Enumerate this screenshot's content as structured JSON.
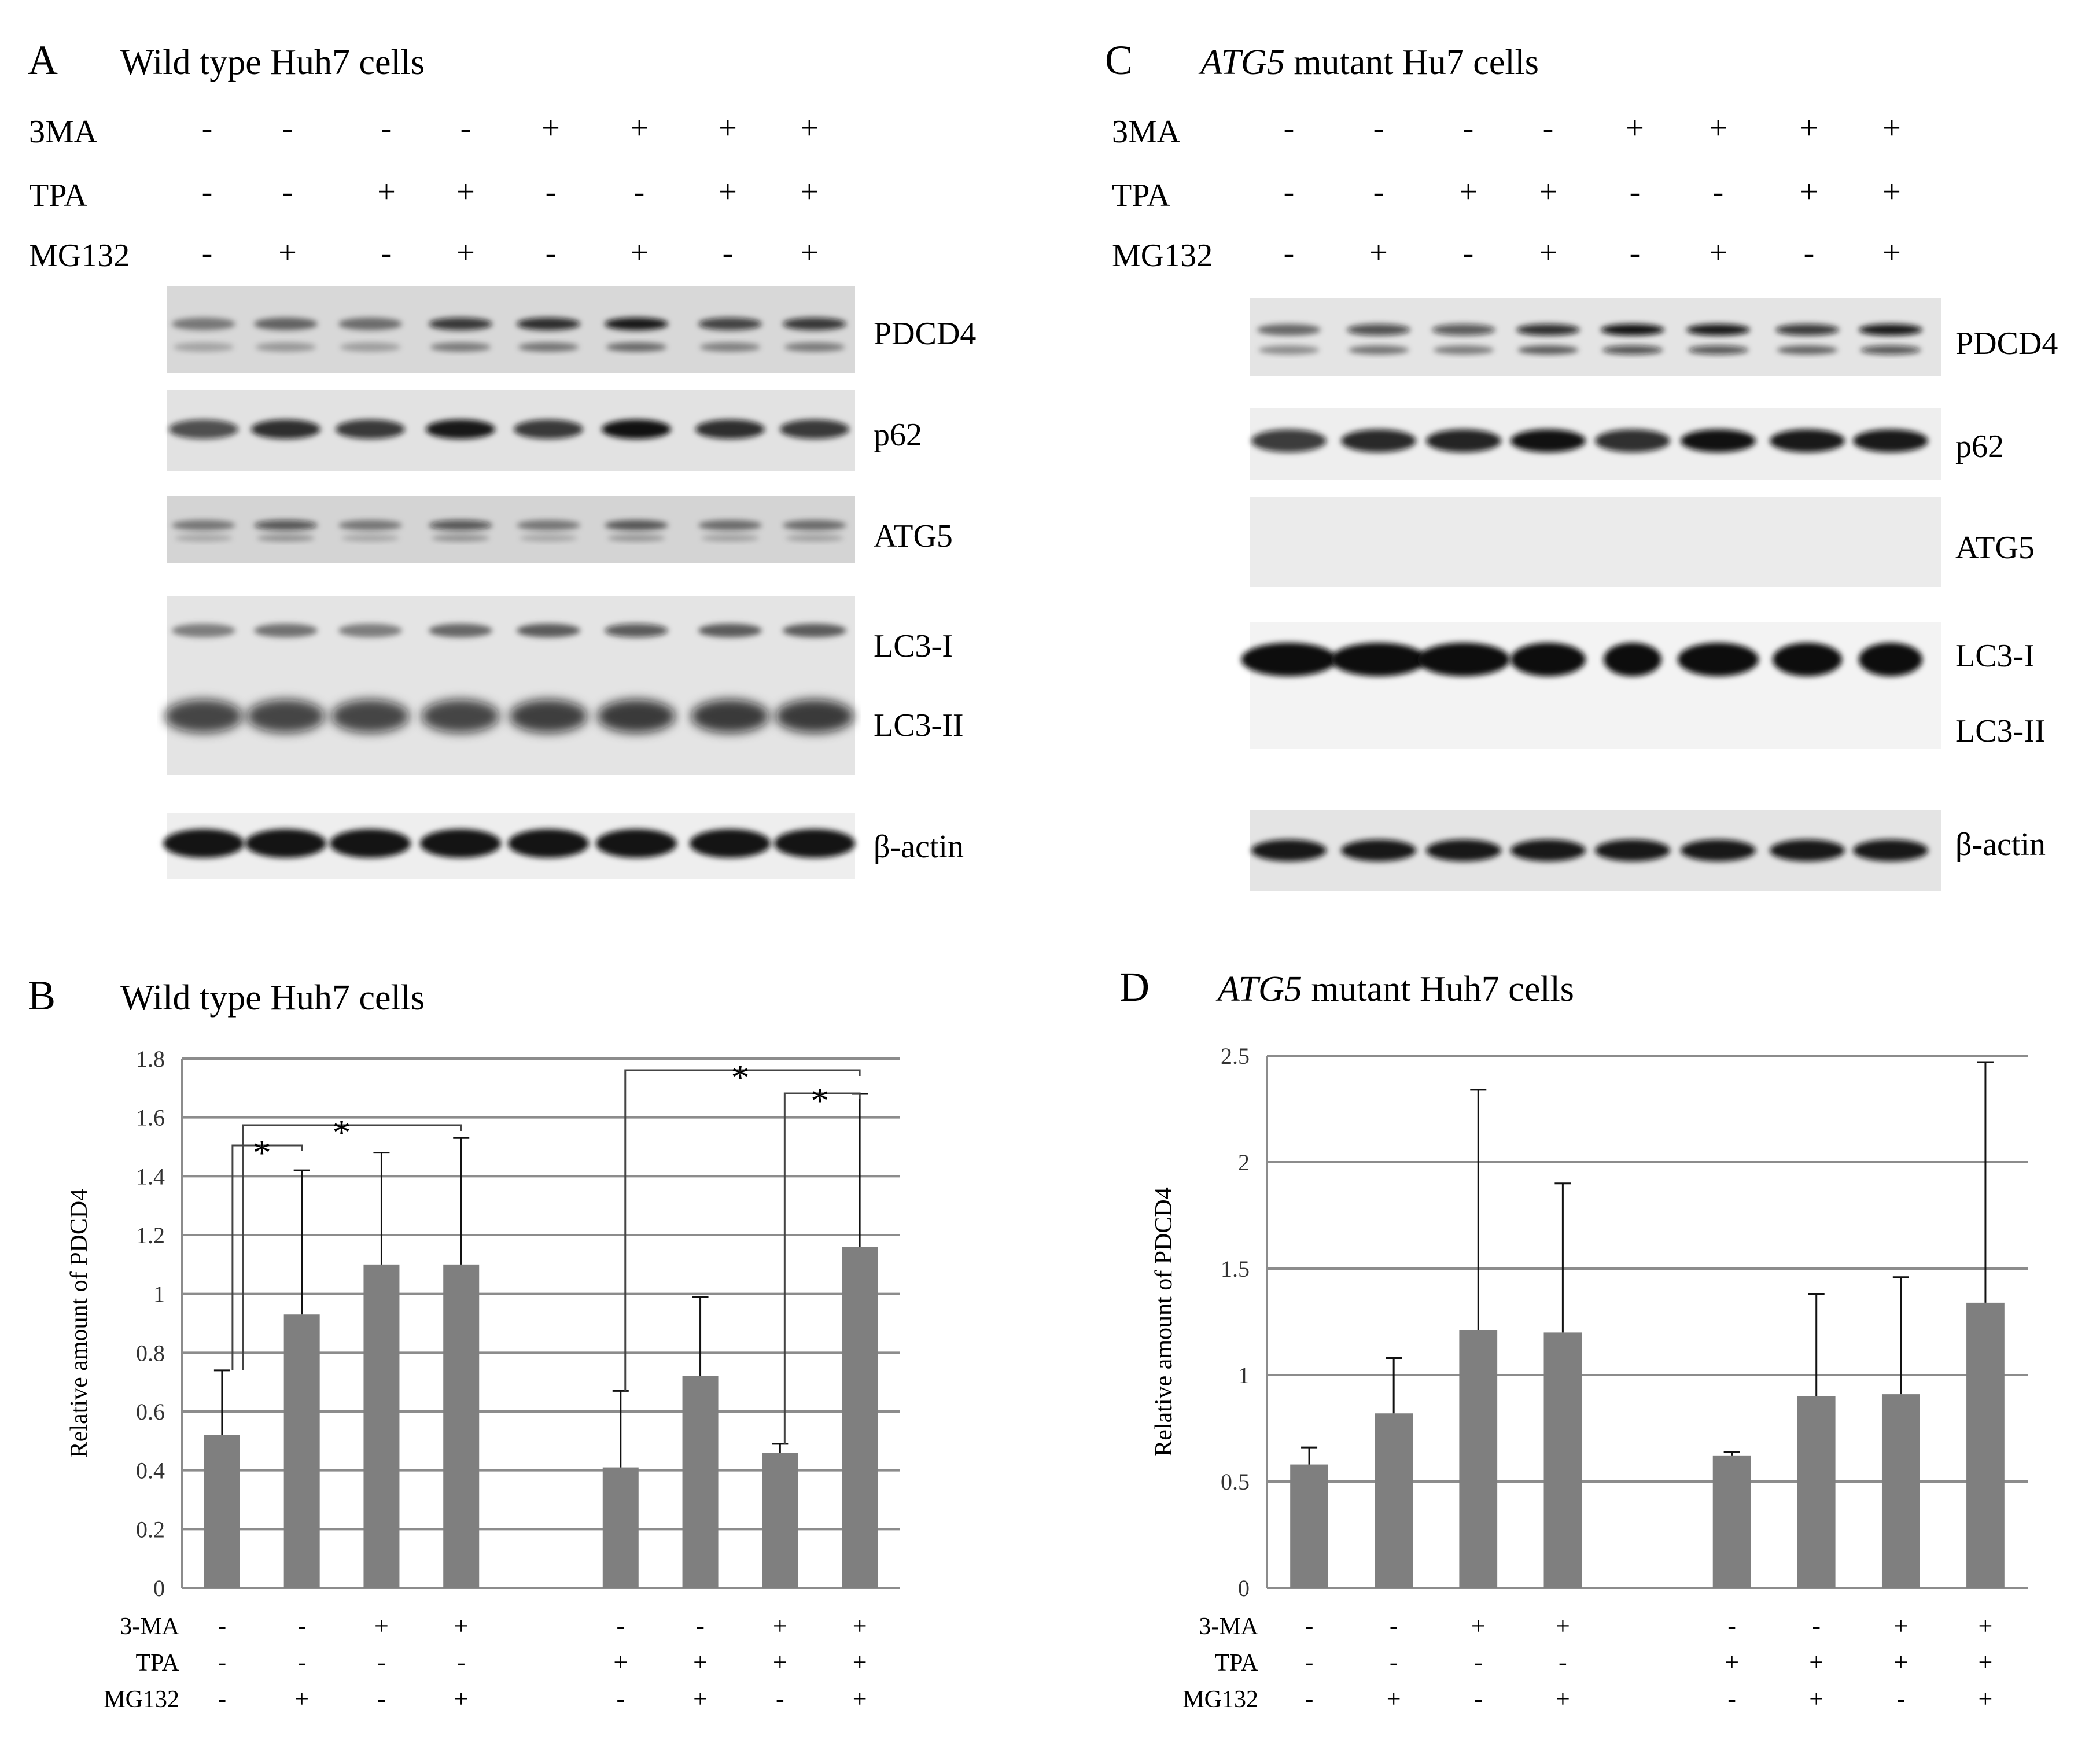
{
  "panels": {
    "A": {
      "letter": "A",
      "title_italic": "",
      "title": "Wild type Huh7 cells",
      "treatments": [
        {
          "name": "3MA",
          "signs": [
            "-",
            "-",
            "-",
            "-",
            "+",
            "+",
            "+",
            "+"
          ]
        },
        {
          "name": "TPA",
          "signs": [
            "-",
            "-",
            "+",
            "+",
            "-",
            "-",
            "+",
            "+"
          ]
        },
        {
          "name": "MG132",
          "signs": [
            "-",
            "+",
            "-",
            "+",
            "-",
            "+",
            "-",
            "+"
          ]
        }
      ],
      "blot_labels": [
        "PDCD4",
        "p62",
        "ATG5",
        "LC3-I",
        "LC3-II",
        "β-actin"
      ]
    },
    "C": {
      "letter": "C",
      "title_italic": "ATG5",
      "title": " mutant Hu7 cells",
      "treatments": [
        {
          "name": "3MA",
          "signs": [
            "-",
            "-",
            "-",
            "-",
            "+",
            "+",
            "+",
            "+"
          ]
        },
        {
          "name": "TPA",
          "signs": [
            "-",
            "-",
            "+",
            "+",
            "-",
            "-",
            "+",
            "+"
          ]
        },
        {
          "name": "MG132",
          "signs": [
            "-",
            "+",
            "-",
            "+",
            "-",
            "+",
            "-",
            "+"
          ]
        }
      ],
      "blot_labels": [
        "PDCD4",
        "p62",
        "ATG5",
        "LC3-I",
        "LC3-II",
        "β-actin"
      ]
    },
    "B": {
      "letter": "B",
      "title_italic": "",
      "title": "Wild type Huh7 cells"
    },
    "D": {
      "letter": "D",
      "title_italic": "ATG5",
      "title": " mutant Huh7 cells"
    }
  },
  "chart_data": [
    {
      "id": "B",
      "type": "bar",
      "title": "Wild type Huh7 cells",
      "ylabel": "Relative amount of PDCD4",
      "ylim": [
        0,
        1.8
      ],
      "yticks": [
        "0",
        "0.2",
        "0.4",
        "0.6",
        "0.8",
        "1",
        "1.2",
        "1.4",
        "1.6",
        "1.8"
      ],
      "values": [
        0.52,
        0.93,
        1.1,
        1.1,
        0.41,
        0.72,
        0.46,
        1.16
      ],
      "errors": [
        0.22,
        0.49,
        0.38,
        0.43,
        0.26,
        0.27,
        0.03,
        0.52
      ],
      "treatments": [
        {
          "name": "3-MA",
          "signs": [
            "-",
            "-",
            "+",
            "+",
            "-",
            "-",
            "+",
            "+"
          ]
        },
        {
          "name": "TPA",
          "signs": [
            "-",
            "-",
            "-",
            "-",
            "+",
            "+",
            "+",
            "+"
          ]
        },
        {
          "name": "MG132",
          "signs": [
            "-",
            "+",
            "-",
            "+",
            "-",
            "+",
            "-",
            "+"
          ]
        }
      ],
      "significance": [
        {
          "from": 0,
          "to": 1,
          "label": "*"
        },
        {
          "from": 0,
          "to": 3,
          "label": "*"
        },
        {
          "from": 4,
          "to": 7,
          "label": "*"
        },
        {
          "from": 6,
          "to": 7,
          "label": "*"
        }
      ]
    },
    {
      "id": "D",
      "type": "bar",
      "title": "ATG5 mutant Huh7 cells",
      "ylabel": "Relative amount of PDCD4",
      "ylim": [
        0,
        2.5
      ],
      "yticks": [
        "0",
        "0.5",
        "1",
        "1.5",
        "2",
        "2.5"
      ],
      "values": [
        0.58,
        0.82,
        1.21,
        1.2,
        0.62,
        0.9,
        0.91,
        1.34
      ],
      "errors": [
        0.08,
        0.26,
        1.13,
        0.7,
        0.02,
        0.48,
        0.55,
        1.13
      ],
      "treatments": [
        {
          "name": "3-MA",
          "signs": [
            "-",
            "-",
            "+",
            "+",
            "-",
            "-",
            "+",
            "+"
          ]
        },
        {
          "name": "TPA",
          "signs": [
            "-",
            "-",
            "-",
            "-",
            "+",
            "+",
            "+",
            "+"
          ]
        },
        {
          "name": "MG132",
          "signs": [
            "-",
            "+",
            "-",
            "+",
            "-",
            "+",
            "-",
            "+"
          ]
        }
      ],
      "significance": []
    }
  ]
}
